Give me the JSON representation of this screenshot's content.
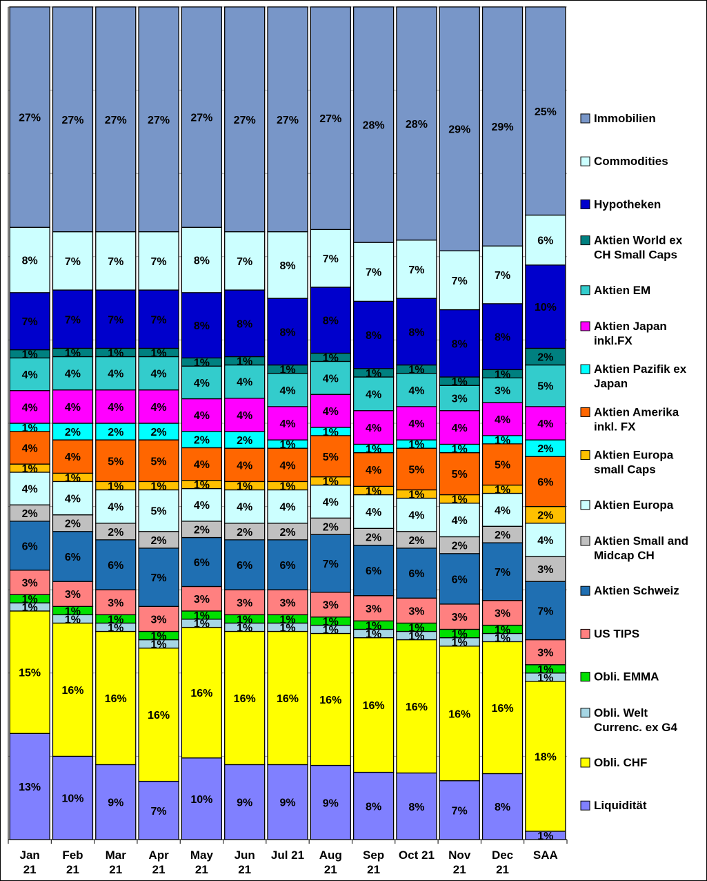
{
  "chart_data": {
    "type": "bar",
    "stacked": true,
    "normalized": true,
    "title": "",
    "xlabel": "",
    "ylabel": "",
    "ylim": [
      0,
      100
    ],
    "grid": "horizontal",
    "legend_position": "right",
    "categories": [
      "Jan 21",
      "Feb 21",
      "Mar 21",
      "Apr 21",
      "May 21",
      "Jun 21",
      "Jul 21",
      "Aug 21",
      "Sep 21",
      "Oct 21",
      "Nov 21",
      "Dec 21",
      "SAA"
    ],
    "series": [
      {
        "name": "Liquidität",
        "color": "#8080ff",
        "values": [
          13,
          10,
          9,
          7,
          10,
          9,
          9,
          9,
          8,
          8,
          7,
          8,
          1
        ]
      },
      {
        "name": "Obli. CHF",
        "color": "#ffff00",
        "values": [
          15,
          16,
          16,
          16,
          16,
          16,
          16,
          16,
          16,
          16,
          16,
          16,
          18
        ]
      },
      {
        "name": "Obli. Welt Currenc. ex G4",
        "color": "#a6d6e4",
        "values": [
          1,
          1,
          1,
          1,
          1,
          1,
          1,
          1,
          1,
          1,
          1,
          1,
          1
        ]
      },
      {
        "name": "Obli. EMMA",
        "color": "#00e000",
        "values": [
          1,
          1,
          1,
          1,
          1,
          1,
          1,
          1,
          1,
          1,
          1,
          1,
          1
        ]
      },
      {
        "name": "US TIPS",
        "color": "#ff8080",
        "values": [
          3,
          3,
          3,
          3,
          3,
          3,
          3,
          3,
          3,
          3,
          3,
          3,
          3
        ]
      },
      {
        "name": "Aktien Schweiz",
        "color": "#1f6fb2",
        "values": [
          6,
          6,
          6,
          7,
          6,
          6,
          6,
          7,
          6,
          6,
          6,
          7,
          7
        ]
      },
      {
        "name": "Aktien Small and Midcap CH",
        "color": "#c0c0c0",
        "values": [
          2,
          2,
          2,
          2,
          2,
          2,
          2,
          2,
          2,
          2,
          2,
          2,
          3
        ]
      },
      {
        "name": "Aktien Europa",
        "color": "#ccffff",
        "values": [
          4,
          4,
          4,
          5,
          4,
          4,
          4,
          4,
          4,
          4,
          4,
          4,
          4
        ]
      },
      {
        "name": "Aktien Europa small Caps",
        "color": "#ffc000",
        "values": [
          1,
          1,
          1,
          1,
          1,
          1,
          1,
          1,
          1,
          1,
          1,
          1,
          2
        ]
      },
      {
        "name": "Aktien Amerika inkl. FX",
        "color": "#ff6600",
        "values": [
          4,
          4,
          5,
          5,
          4,
          4,
          4,
          5,
          4,
          5,
          5,
          5,
          6
        ]
      },
      {
        "name": "Aktien Pazifik ex Japan",
        "color": "#00ffff",
        "values": [
          1,
          2,
          2,
          2,
          2,
          2,
          1,
          1,
          1,
          1,
          1,
          1,
          2
        ]
      },
      {
        "name": "Aktien Japan inkl.FX",
        "color": "#ff00ff",
        "values": [
          4,
          4,
          4,
          4,
          4,
          4,
          4,
          4,
          4,
          4,
          4,
          4,
          4
        ]
      },
      {
        "name": "Aktien EM",
        "color": "#33cccc",
        "values": [
          4,
          4,
          4,
          4,
          4,
          4,
          4,
          4,
          4,
          4,
          3,
          3,
          5
        ]
      },
      {
        "name": "Aktien World ex CH Small Caps",
        "color": "#008080",
        "values": [
          1,
          1,
          1,
          1,
          1,
          1,
          1,
          1,
          1,
          1,
          1,
          1,
          2
        ]
      },
      {
        "name": "Hypotheken",
        "color": "#0000cc",
        "values": [
          7,
          7,
          7,
          7,
          8,
          8,
          8,
          8,
          8,
          8,
          8,
          8,
          10
        ]
      },
      {
        "name": "Commodities",
        "color": "#ccffff",
        "values": [
          8,
          7,
          7,
          7,
          8,
          7,
          8,
          7,
          7,
          7,
          7,
          7,
          6
        ]
      },
      {
        "name": "Immobilien",
        "color": "#7896c8",
        "values": [
          27,
          27,
          27,
          27,
          27,
          27,
          27,
          27,
          28,
          28,
          29,
          29,
          25
        ]
      }
    ]
  },
  "x_tick_labels": [
    [
      "Jan",
      "21"
    ],
    [
      "Feb",
      "21"
    ],
    [
      "Mar",
      "21"
    ],
    [
      "Apr",
      "21"
    ],
    [
      "May",
      "21"
    ],
    [
      "Jun",
      "21"
    ],
    [
      "Jul 21"
    ],
    [
      "Aug",
      "21"
    ],
    [
      "Sep",
      "21"
    ],
    [
      "Oct 21"
    ],
    [
      "Nov",
      "21"
    ],
    [
      "Dec",
      "21"
    ],
    [
      "SAA"
    ]
  ],
  "legend": {
    "order": [
      "Immobilien",
      "Commodities",
      "Hypotheken",
      "Aktien World ex CH Small Caps",
      "Aktien EM",
      "Aktien Japan inkl.FX",
      "Aktien Pazifik ex Japan",
      "Aktien Amerika inkl. FX",
      "Aktien Europa small Caps",
      "Aktien Europa",
      "Aktien Small and Midcap CH",
      "Aktien Schweiz",
      "US TIPS",
      "Obli. EMMA",
      "Obli. Welt Currenc. ex G4",
      "Obli. CHF",
      "Liquidität"
    ],
    "lines": {
      "Immobilien": [
        "Immobilien"
      ],
      "Commodities": [
        "Commodities"
      ],
      "Hypotheken": [
        "Hypotheken"
      ],
      "Aktien World ex CH Small Caps": [
        "Aktien World ex",
        "CH Small Caps"
      ],
      "Aktien EM": [
        "Aktien EM"
      ],
      "Aktien Japan inkl.FX": [
        "Aktien Japan",
        "inkl.FX"
      ],
      "Aktien Pazifik ex Japan": [
        "Aktien Pazifik ex",
        "Japan"
      ],
      "Aktien Amerika inkl. FX": [
        "Aktien Amerika",
        "inkl. FX"
      ],
      "Aktien Europa small Caps": [
        "Aktien Europa",
        "small Caps"
      ],
      "Aktien Europa": [
        "Aktien Europa"
      ],
      "Aktien Small and Midcap CH": [
        "Aktien Small and",
        "Midcap CH"
      ],
      "Aktien Schweiz": [
        "Aktien Schweiz"
      ],
      "US TIPS": [
        "US TIPS"
      ],
      "Obli. EMMA": [
        "Obli. EMMA"
      ],
      "Obli. Welt Currenc. ex G4": [
        "Obli. Welt",
        "Currenc. ex G4"
      ],
      "Obli. CHF": [
        "Obli. CHF"
      ],
      "Liquidität": [
        "Liquidität"
      ]
    }
  }
}
